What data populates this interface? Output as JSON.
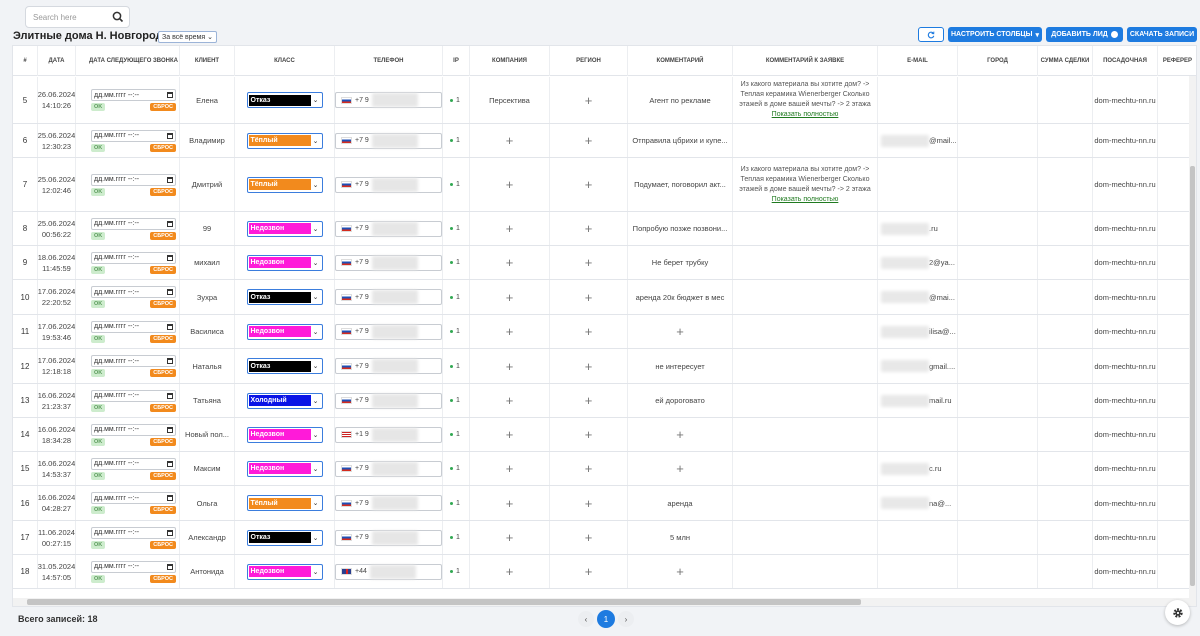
{
  "search": {
    "placeholder": "Search here"
  },
  "page_title": "Элитные дома Н. Новгород",
  "period": "За всё время",
  "toolbar": {
    "refresh_icon": "refresh-icon",
    "configure_columns": "НАСТРОИТЬ СТОЛБЦЫ",
    "add_lead": "ДОБАВИТЬ ЛИД",
    "download": "СКАЧАТЬ ЗАПИСИ"
  },
  "columns": [
    "#",
    "ДАТА",
    "ДАТА СЛЕДУЮЩЕГО ЗВОНКА",
    "КЛИЕНТ",
    "КЛАСС",
    "ТЕЛЕФОН",
    "IP",
    "КОМПАНИЯ",
    "РЕГИОН",
    "КОММЕНТАРИЙ",
    "КОММЕНТАРИЙ К ЗАЯВКЕ",
    "E-MAIL",
    "ГОРОД",
    "СУММА СДЕЛКИ",
    "ПОСАДОЧНАЯ",
    "РЕФЕРЕР"
  ],
  "date_input": {
    "placeholder": "дд.мм.гггг --:--",
    "ok": "OK",
    "reset": "СБРОС"
  },
  "class_colors": {
    "Отказ": "#000000",
    "Тёплый": "#f28a1d",
    "Недозвон": "#ff1ad9",
    "Холодный": "#0a14e6"
  },
  "application_comment": {
    "text": "Из какого материала вы хотите дом? -> Теплая керамика Wienerberger Сколько этажей в доме вашей мечты? -> 2 этажа",
    "show_full": "Показать полностью"
  },
  "rows": [
    {
      "n": "5",
      "date": "26.06.2024",
      "time": "14:10:26",
      "client": "Елена",
      "class": "Отказ",
      "phone_prefix": "+7 9",
      "flag": "ru",
      "ip": "1",
      "company": "Персектива",
      "region": "+",
      "comment": "Агент по рекламе",
      "app": true,
      "email": "",
      "landing": "dom-mechtu-nn.ru"
    },
    {
      "n": "6",
      "date": "25.06.2024",
      "time": "12:30:23",
      "client": "Владимир",
      "class": "Тёплый",
      "phone_prefix": "+7 9",
      "flag": "ru",
      "ip": "1",
      "company": "+",
      "region": "+",
      "comment": "Отправила цбрихи и купе...",
      "app": false,
      "email": "@mail...",
      "landing": "dom-mechtu-nn.ru"
    },
    {
      "n": "7",
      "date": "25.06.2024",
      "time": "12:02:46",
      "client": "Дмитрий",
      "class": "Тёплый",
      "phone_prefix": "+7 9",
      "flag": "ru",
      "ip": "1",
      "company": "+",
      "region": "+",
      "comment": "Подумает, поговорил акт...",
      "app": true,
      "email": "",
      "landing": "dom-mechtu-nn.ru"
    },
    {
      "n": "8",
      "date": "25.06.2024",
      "time": "00:56:22",
      "client": "99",
      "class": "Недозвон",
      "phone_prefix": "+7 9",
      "flag": "ru",
      "ip": "1",
      "company": "+",
      "region": "+",
      "comment": "Попробую позже позвони...",
      "app": false,
      "email": ".ru",
      "landing": "dom-mechtu-nn.ru"
    },
    {
      "n": "9",
      "date": "18.06.2024",
      "time": "11:45:59",
      "client": "михаил",
      "class": "Недозвон",
      "phone_prefix": "+7 9",
      "flag": "ru",
      "ip": "1",
      "company": "+",
      "region": "+",
      "comment": "Не берет трубку",
      "app": false,
      "email": "2@ya...",
      "landing": "dom-mechtu-nn.ru"
    },
    {
      "n": "10",
      "date": "17.06.2024",
      "time": "22:20:52",
      "client": "Зухра",
      "class": "Отказ",
      "phone_prefix": "+7 9",
      "flag": "ru",
      "ip": "1",
      "company": "+",
      "region": "+",
      "comment": "аренда 20к бюджет в мес",
      "app": false,
      "email": "@mai...",
      "landing": "dom-mechtu-nn.ru"
    },
    {
      "n": "11",
      "date": "17.06.2024",
      "time": "19:53:46",
      "client": "Василиса",
      "class": "Недозвон",
      "phone_prefix": "+7 9",
      "flag": "ru",
      "ip": "1",
      "company": "+",
      "region": "+",
      "comment": "+",
      "app": false,
      "email": "ilisa@...",
      "landing": "dom-mechtu-nn.ru"
    },
    {
      "n": "12",
      "date": "17.06.2024",
      "time": "12:18:18",
      "client": "Наталья",
      "class": "Отказ",
      "phone_prefix": "+7 9",
      "flag": "ru",
      "ip": "1",
      "company": "+",
      "region": "+",
      "comment": "не интересует",
      "app": false,
      "email": "gmail....",
      "landing": "dom-mechtu-nn.ru"
    },
    {
      "n": "13",
      "date": "16.06.2024",
      "time": "21:23:37",
      "client": "Татьяна",
      "class": "Холодный",
      "phone_prefix": "+7 9",
      "flag": "ru",
      "ip": "1",
      "company": "+",
      "region": "+",
      "comment": "ей дороговато",
      "app": false,
      "email": "mail.ru",
      "landing": "dom-mechtu-nn.ru"
    },
    {
      "n": "14",
      "date": "16.06.2024",
      "time": "18:34:28",
      "client": "Новый пол...",
      "class": "Недозвон",
      "phone_prefix": "+1 9",
      "flag": "us",
      "ip": "1",
      "company": "+",
      "region": "+",
      "comment": "+",
      "app": false,
      "email": "",
      "landing": "dom-mechtu-nn.ru"
    },
    {
      "n": "15",
      "date": "16.06.2024",
      "time": "14:53:37",
      "client": "Максим",
      "class": "Недозвон",
      "phone_prefix": "+7 9",
      "flag": "ru",
      "ip": "1",
      "company": "+",
      "region": "+",
      "comment": "+",
      "app": false,
      "email": "c.ru",
      "landing": "dom-mechtu-nn.ru"
    },
    {
      "n": "16",
      "date": "16.06.2024",
      "time": "04:28:27",
      "client": "Ольга",
      "class": "Тёплый",
      "phone_prefix": "+7 9",
      "flag": "ru",
      "ip": "1",
      "company": "+",
      "region": "+",
      "comment": "аренда",
      "app": false,
      "email": "na@...",
      "landing": "dom-mechtu-nn.ru"
    },
    {
      "n": "17",
      "date": "11.06.2024",
      "time": "00:27:15",
      "client": "Александр",
      "class": "Отказ",
      "phone_prefix": "+7 9",
      "flag": "ru",
      "ip": "1",
      "company": "+",
      "region": "+",
      "comment": "5 млн",
      "app": false,
      "email": "",
      "landing": "dom-mechtu-nn.ru"
    },
    {
      "n": "18",
      "date": "31.05.2024",
      "time": "14:57:05",
      "client": "Антонида",
      "class": "Недозвон",
      "phone_prefix": "+44",
      "flag": "gb",
      "ip": "1",
      "company": "+",
      "region": "+",
      "comment": "+",
      "app": false,
      "email": "",
      "landing": "dom-mechtu-nn.ru"
    }
  ],
  "footer": {
    "total": "Всего записей: 18",
    "page": "1",
    "prev": "‹",
    "next": "›",
    "settings_icon": "gear-icon"
  }
}
